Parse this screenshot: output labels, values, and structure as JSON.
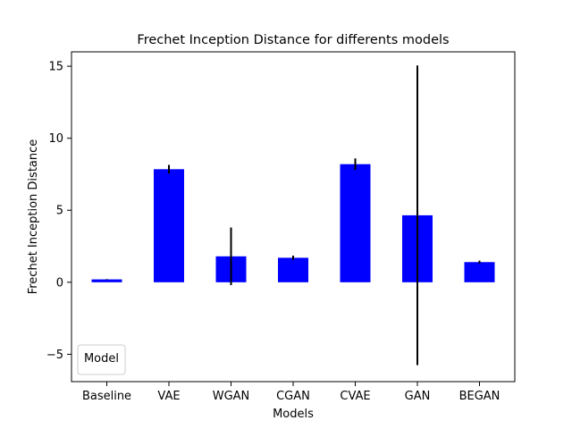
{
  "chart_data": {
    "type": "bar",
    "title": "Frechet Inception Distance for differents models",
    "xlabel": "Models",
    "ylabel": "Frechet Inception Distance",
    "categories": [
      "Baseline",
      "VAE",
      "WGAN",
      "CGAN",
      "CVAE",
      "GAN",
      "BEGAN"
    ],
    "values": [
      0.2,
      7.85,
      1.8,
      1.7,
      8.2,
      4.65,
      1.4
    ],
    "errors": [
      0.02,
      0.3,
      2.0,
      0.15,
      0.4,
      10.4,
      0.1
    ],
    "ylim": [
      -6.9,
      16.0
    ],
    "yticks": [
      -5,
      0,
      5,
      10,
      15
    ],
    "ytick_labels": [
      "−5",
      "0",
      "5",
      "10",
      "15"
    ],
    "bar_color": "#0000ff",
    "error_color": "#000000",
    "grid": false,
    "legend": {
      "title": "Model",
      "placement": "lower-left",
      "entries": []
    }
  }
}
